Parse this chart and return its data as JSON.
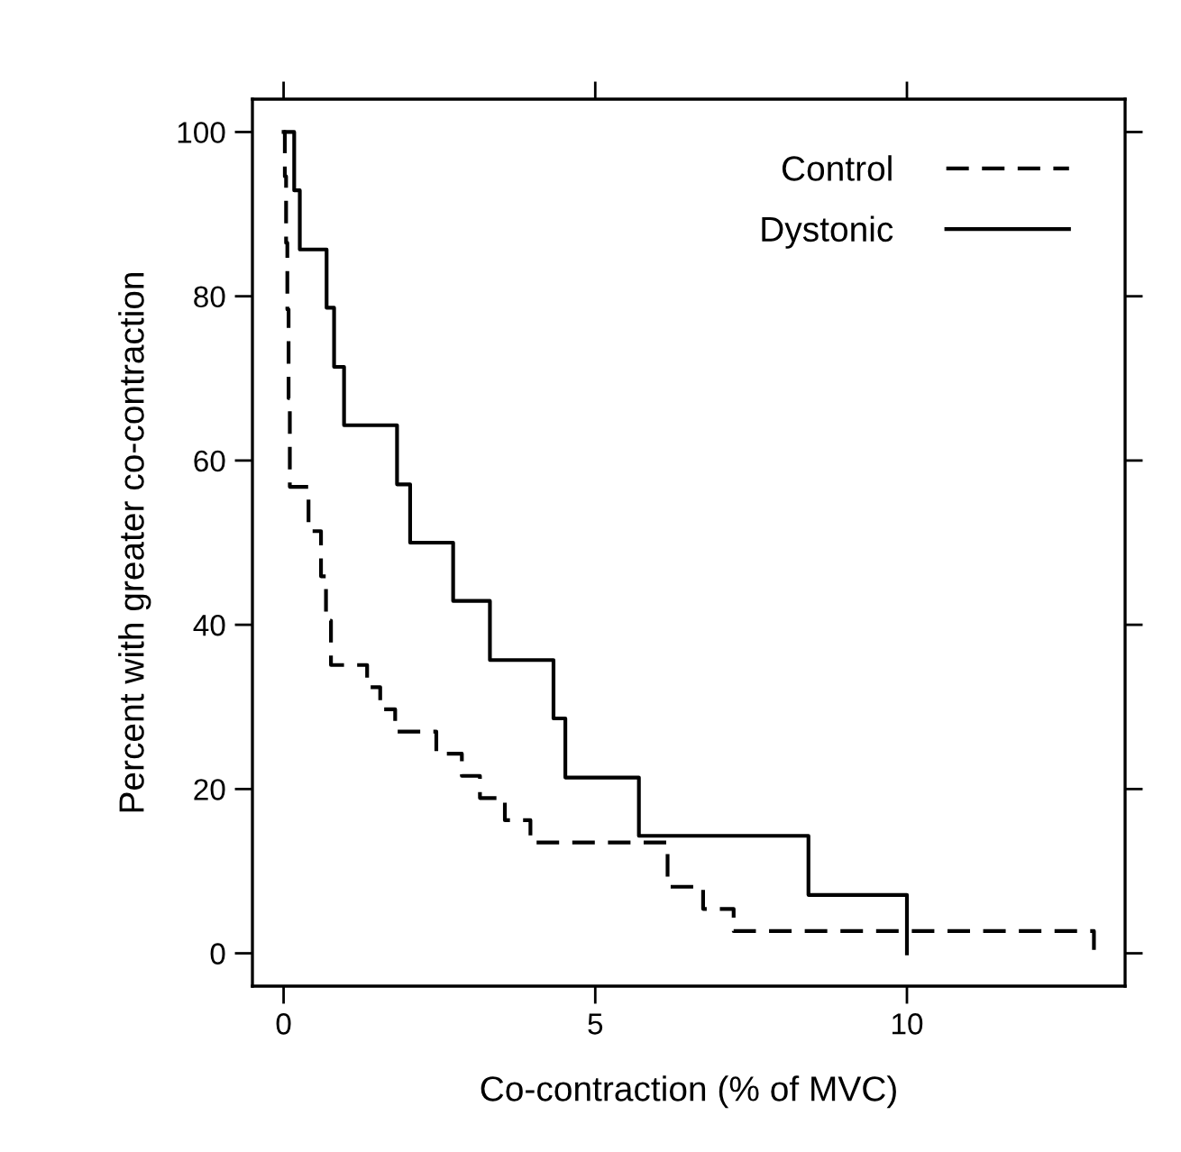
{
  "chart_data": {
    "type": "step",
    "xlabel": "Co-contraction (% of MVC)",
    "ylabel": "Percent with greater co-contraction",
    "xlim": [
      -0.5,
      13.5
    ],
    "ylim": [
      -4,
      104
    ],
    "xticks": [
      0,
      5,
      10
    ],
    "yticks": [
      0,
      20,
      40,
      60,
      80,
      100
    ],
    "grid": false,
    "legend": "top right",
    "series": [
      {
        "name": "Control",
        "color": "#000000",
        "line_style": "dashed",
        "x": [
          0,
          0.02,
          0.04,
          0.06,
          0.08,
          0.1,
          0.4,
          0.6,
          0.68,
          0.76,
          1.34,
          1.55,
          1.79,
          2.45,
          2.86,
          3.15,
          3.55,
          3.96,
          6.16,
          6.73,
          7.22,
          13.0
        ],
        "values": [
          100,
          94.6,
          86.5,
          78.4,
          67.6,
          56.8,
          51.4,
          45.9,
          40.5,
          35.1,
          32.4,
          29.7,
          27.0,
          24.3,
          21.6,
          18.9,
          16.2,
          13.5,
          8.1,
          5.4,
          2.7,
          0
        ]
      },
      {
        "name": "Dystonic",
        "color": "#000000",
        "line_style": "solid",
        "x": [
          0,
          0.17,
          0.26,
          0.69,
          0.81,
          0.97,
          1.82,
          2.03,
          2.72,
          3.31,
          4.33,
          4.52,
          5.7,
          8.42,
          10.0
        ],
        "values": [
          100,
          92.9,
          85.7,
          78.6,
          71.4,
          64.3,
          57.1,
          50.0,
          42.9,
          35.7,
          28.6,
          21.4,
          14.3,
          7.1,
          0
        ]
      }
    ]
  }
}
